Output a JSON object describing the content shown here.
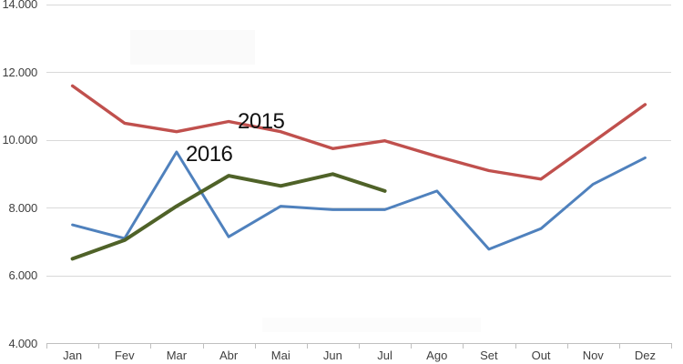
{
  "chart_data": {
    "type": "line",
    "title": "",
    "xlabel": "",
    "ylabel": "",
    "categories": [
      "Jan",
      "Fev",
      "Mar",
      "Abr",
      "Mai",
      "Jun",
      "Jul",
      "Ago",
      "Set",
      "Out",
      "Nov",
      "Dez"
    ],
    "series": [
      {
        "label": "",
        "color_key": "blue",
        "values": [
          7500,
          7100,
          9650,
          7150,
          8050,
          7950,
          7950,
          8500,
          6780,
          7390,
          8700,
          9480
        ]
      },
      {
        "label": "2015",
        "color_key": "red",
        "values": [
          11600,
          10500,
          10250,
          10550,
          10250,
          9750,
          9980,
          9520,
          9100,
          8850,
          9950,
          11050
        ]
      },
      {
        "label": "2016",
        "color_key": "green",
        "values": [
          6500,
          7050,
          8050,
          8950,
          8650,
          9000,
          8500
        ]
      }
    ],
    "ylim": [
      4000,
      14000
    ],
    "yticks": [
      4000,
      6000,
      8000,
      10000,
      12000,
      14000
    ],
    "ytick_labels": [
      "4.000",
      "6.000",
      "8.000",
      "10.000",
      "12.000",
      "14.000"
    ],
    "grid": true,
    "legend": "none",
    "annotations": [
      {
        "text": "2015",
        "x": 261,
        "y": 122
      },
      {
        "text": "2016",
        "x": 204,
        "y": 158
      }
    ]
  },
  "colors": {
    "blue": "#4F81BD",
    "red": "#C0504D",
    "green": "#4F6228",
    "gridline": "#D9D9D9",
    "axis": "#BFBFBF",
    "tick_text": "#3F3F3F",
    "annotation_text": "#111111",
    "background": "#FFFFFF"
  }
}
